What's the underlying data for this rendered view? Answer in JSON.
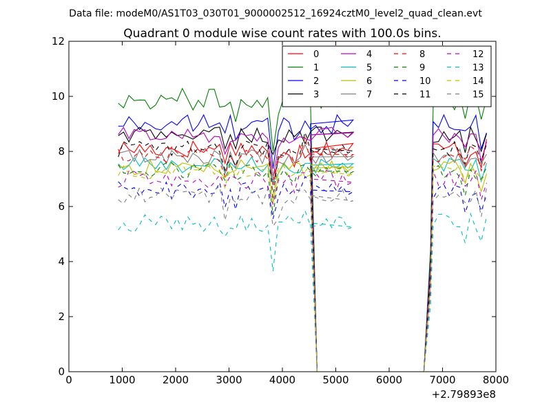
{
  "chart_data": {
    "type": "line",
    "suptitle": "Data file: modeM0/AS1T03_030T01_9000002512_16924cztM0_level2_quad_clean.evt",
    "title": "Quadrant 0 module wise count rates with 100.0s bins.",
    "xlabel": "",
    "ylabel": "",
    "xlim": [
      0,
      8000
    ],
    "ylim": [
      0,
      12
    ],
    "x_offset_label": "+2.79893e8",
    "x_ticks": [
      0,
      1000,
      2000,
      3000,
      4000,
      5000,
      6000,
      7000,
      8000
    ],
    "x_tick_labels": [
      "0",
      "1000",
      "2000",
      "3000",
      "4000",
      "5000",
      "6000",
      "7000",
      "8000"
    ],
    "y_ticks": [
      0,
      2,
      4,
      6,
      8,
      10,
      12
    ],
    "y_tick_labels": [
      "0",
      "2",
      "4",
      "6",
      "8",
      "10",
      "12"
    ],
    "grid": false,
    "legend_position": "top-right",
    "legend_columns": 4,
    "x_segments": [
      {
        "start": 925,
        "step": 100,
        "count": 45
      },
      {
        "start": 6825,
        "step": 100,
        "count": 11
      }
    ],
    "gap_profile": [
      [
        4525,
        1.0
      ],
      [
        4625,
        0.2
      ],
      [
        4650,
        0
      ],
      [
        6650,
        0
      ],
      [
        6775,
        0.45
      ]
    ],
    "series": [
      {
        "name": "0",
        "color": "#ff0000",
        "dash": "solid",
        "mean": 8.1,
        "amplitude": 0.35,
        "dip": 1.2
      },
      {
        "name": "1",
        "color": "#008000",
        "dash": "solid",
        "mean": 9.9,
        "amplitude": 0.4,
        "dip": 2.0
      },
      {
        "name": "2",
        "color": "#0000ff",
        "dash": "solid",
        "mean": 9.0,
        "amplitude": 0.35,
        "dip": 1.4
      },
      {
        "name": "3",
        "color": "#000000",
        "dash": "solid",
        "mean": 8.6,
        "amplitude": 0.3,
        "dip": 1.3
      },
      {
        "name": "4",
        "color": "#bf00bf",
        "dash": "solid",
        "mean": 8.6,
        "amplitude": 0.3,
        "dip": 1.3
      },
      {
        "name": "5",
        "color": "#00bfbf",
        "dash": "solid",
        "mean": 7.5,
        "amplitude": 0.3,
        "dip": 1.1
      },
      {
        "name": "6",
        "color": "#bfbf00",
        "dash": "solid",
        "mean": 7.4,
        "amplitude": 0.3,
        "dip": 1.0
      },
      {
        "name": "7",
        "color": "#808080",
        "dash": "solid",
        "mean": 7.8,
        "amplitude": 0.3,
        "dip": 1.2
      },
      {
        "name": "8",
        "color": "#ff0000",
        "dash": "dashed",
        "mean": 7.9,
        "amplitude": 0.3,
        "dip": 1.2
      },
      {
        "name": "9",
        "color": "#008000",
        "dash": "dashed",
        "mean": 7.3,
        "amplitude": 0.3,
        "dip": 1.1
      },
      {
        "name": "10",
        "color": "#0000ff",
        "dash": "dashed",
        "mean": 6.6,
        "amplitude": 0.35,
        "dip": 1.3
      },
      {
        "name": "11",
        "color": "#000000",
        "dash": "dashed",
        "mean": 8.1,
        "amplitude": 0.3,
        "dip": 1.2
      },
      {
        "name": "12",
        "color": "#bf00bf",
        "dash": "dashed",
        "mean": 7.0,
        "amplitude": 0.35,
        "dip": 1.1
      },
      {
        "name": "13",
        "color": "#00bfbf",
        "dash": "dashed",
        "mean": 5.4,
        "amplitude": 0.35,
        "dip": 1.1
      },
      {
        "name": "14",
        "color": "#bfbf00",
        "dash": "dashed",
        "mean": 7.3,
        "amplitude": 0.3,
        "dip": 1.0
      },
      {
        "name": "15",
        "color": "#808080",
        "dash": "dashed",
        "mean": 6.4,
        "amplitude": 0.35,
        "dip": 1.1
      }
    ]
  }
}
